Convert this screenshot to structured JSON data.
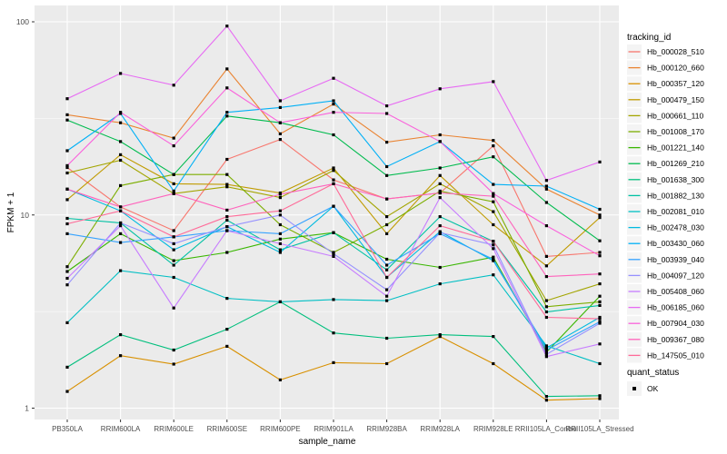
{
  "figure": {
    "bg": "#FFFFFF",
    "panel_bg": "#EBEBEB",
    "grid_color": "#FFFFFF",
    "tick_color": "#333333",
    "tick_label_color": "#4D4D4D",
    "axis_title_color": "#000000",
    "point_color": "#000000",
    "legend_key_bg": "#F4F4F4"
  },
  "chart_data": {
    "type": "line",
    "title": "",
    "xlabel": "sample_name",
    "ylabel": "FPKM + 1",
    "y_scale": "log10",
    "y_ticks": [
      1,
      10,
      100
    ],
    "y_minor_ticks": [
      3.162,
      31.62
    ],
    "ylim": [
      0.87,
      121
    ],
    "grid": true,
    "legend_position": "right",
    "legend_title": "tracking_id",
    "quant_legend": {
      "title": "quant_status",
      "items": [
        {
          "label": "OK",
          "marker": "black-square"
        }
      ]
    },
    "categories": [
      "PB350LA",
      "RRIM600LA",
      "RRIM600LE",
      "RRIM600SE",
      "RRIM600PE",
      "RRIM901LA",
      "RRIM928BA",
      "RRIM928LA",
      "RRIM928LE",
      "RRII105LA_Control",
      "RRII105LA_Stressed"
    ],
    "series": [
      {
        "name": "Hb_000028_510",
        "color": "#F8766D",
        "values": [
          17.6,
          11.0,
          8.3,
          19.4,
          24.6,
          15.2,
          12.1,
          13.0,
          22.8,
          6.1,
          6.4
        ]
      },
      {
        "name": "Hb_000120_660",
        "color": "#EA8331",
        "values": [
          33.0,
          30.0,
          25.0,
          57.0,
          26.3,
          37.5,
          23.8,
          26.0,
          24.3,
          13.6,
          10.0
        ]
      },
      {
        "name": "Hb_000357_120",
        "color": "#D89000",
        "values": [
          1.22,
          1.87,
          1.69,
          2.09,
          1.4,
          1.72,
          1.7,
          2.35,
          1.7,
          1.1,
          1.12
        ]
      },
      {
        "name": "Hb_000479_150",
        "color": "#C09B00",
        "values": [
          12.0,
          20.5,
          14.5,
          14.4,
          13.0,
          17.5,
          8.0,
          16.0,
          8.9,
          5.45,
          9.7
        ]
      },
      {
        "name": "Hb_000661_110",
        "color": "#A3A500",
        "values": [
          16.5,
          19.2,
          12.9,
          14.0,
          12.3,
          17.0,
          9.8,
          14.5,
          10.4,
          3.6,
          4.4
        ]
      },
      {
        "name": "Hb_001008_170",
        "color": "#7CAE00",
        "values": [
          5.4,
          14.2,
          16.2,
          16.2,
          8.9,
          6.4,
          8.9,
          13.3,
          11.7,
          3.35,
          3.55
        ]
      },
      {
        "name": "Hb_001221_140",
        "color": "#39B600",
        "values": [
          5.1,
          8.0,
          5.8,
          6.4,
          7.5,
          8.1,
          5.9,
          5.35,
          6.05,
          1.95,
          3.8
        ]
      },
      {
        "name": "Hb_001269_210",
        "color": "#00BB4E",
        "values": [
          31.0,
          24.0,
          16.2,
          32.5,
          30.0,
          26.0,
          16.0,
          17.5,
          20.0,
          11.6,
          7.35
        ]
      },
      {
        "name": "Hb_001638_300",
        "color": "#00BF7D",
        "values": [
          1.63,
          2.4,
          2.0,
          2.56,
          3.55,
          2.45,
          2.3,
          2.4,
          2.35,
          1.15,
          1.16
        ]
      },
      {
        "name": "Hb_001882_130",
        "color": "#00C1A3",
        "values": [
          9.6,
          9.1,
          5.5,
          9.4,
          6.6,
          8.1,
          5.2,
          9.8,
          7.3,
          3.15,
          3.4
        ]
      },
      {
        "name": "Hb_002081_010",
        "color": "#00BFC4",
        "values": [
          2.77,
          5.15,
          4.75,
          3.7,
          3.55,
          3.65,
          3.6,
          4.4,
          4.9,
          2.1,
          1.7
        ]
      },
      {
        "name": "Hb_002478_030",
        "color": "#00BAE0",
        "values": [
          13.6,
          10.5,
          6.6,
          8.7,
          6.4,
          11.1,
          4.75,
          8.2,
          5.8,
          2.05,
          2.95
        ]
      },
      {
        "name": "Hb_003430_060",
        "color": "#00B0F6",
        "values": [
          21.5,
          33.5,
          13.3,
          34.0,
          36.0,
          39.0,
          17.8,
          24.0,
          14.4,
          14.1,
          10.7
        ]
      },
      {
        "name": "Hb_003939_040",
        "color": "#35A2FF",
        "values": [
          8.0,
          7.2,
          7.7,
          8.3,
          8.0,
          11.1,
          5.5,
          8.0,
          5.9,
          2.0,
          2.8
        ]
      },
      {
        "name": "Hb_004097_120",
        "color": "#9590FF",
        "values": [
          4.35,
          9.1,
          7.1,
          8.7,
          10.0,
          6.3,
          4.1,
          8.1,
          7.0,
          1.9,
          2.75
        ]
      },
      {
        "name": "Hb_005408_060",
        "color": "#C77CFF",
        "values": [
          4.7,
          8.8,
          3.3,
          8.3,
          7.1,
          6.1,
          3.8,
          12.3,
          6.7,
          1.85,
          2.15
        ]
      },
      {
        "name": "Hb_006185_060",
        "color": "#E76BF3",
        "values": [
          40.0,
          54.0,
          47.0,
          95.0,
          39.0,
          51.0,
          36.7,
          45.0,
          49.0,
          15.1,
          18.8
        ]
      },
      {
        "name": "Hb_007904_030",
        "color": "#FA62DB",
        "values": [
          18.0,
          34.0,
          22.8,
          45.5,
          30.0,
          34.0,
          33.5,
          24.0,
          12.9,
          8.8,
          6.15
        ]
      },
      {
        "name": "Hb_009367_080",
        "color": "#FF62BC",
        "values": [
          13.6,
          11.0,
          12.9,
          10.6,
          12.8,
          14.5,
          12.1,
          13.0,
          12.5,
          4.8,
          4.95
        ]
      },
      {
        "name": "Hb_147505_010",
        "color": "#FF6A98",
        "values": [
          9.0,
          10.5,
          7.7,
          9.8,
          10.5,
          14.5,
          4.75,
          8.8,
          7.3,
          2.95,
          2.9
        ]
      }
    ]
  }
}
